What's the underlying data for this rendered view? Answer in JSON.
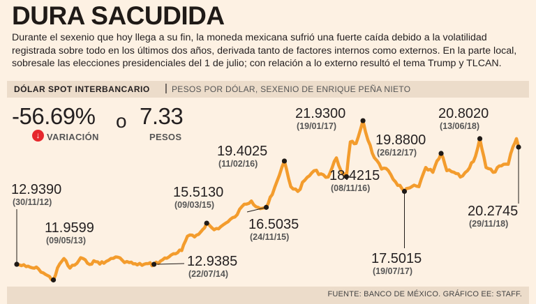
{
  "header": {
    "title": "DURA SACUDIDA",
    "intro": "Durante el sexenio que hoy llega a su fin, la moneda mexicana sufrió una fuerte caída debido a la volatilidad registrada sobre todo en los últimos dos años, derivada tanto de factores internos como externos. En la parte local, sobresale las elecciones presidenciales del 1 de julio; con relación a lo externo resultó el tema Trump y TLCAN."
  },
  "subtitle_bar": {
    "label": "DÓLAR SPOT INTERBANCARIO",
    "separator": "|",
    "detail": "PESOS POR DÓLAR, SEXENIO DE ENRIQUE PEÑA NIETO"
  },
  "stats": {
    "variation_value": "-56.69%",
    "variation_label": "VARIACIÓN",
    "connector": "o",
    "pesos_value": "7.33",
    "pesos_label": "PESOS",
    "down_icon": "↓"
  },
  "footer": {
    "source": "FUENTE: BANCO DE MÉXICO. GRÁFICO EE: STAFF."
  },
  "colors": {
    "line": "#f39c2d",
    "background": "#fdf1e3",
    "bar": "#ecdcca",
    "down_badge": "#e6282d"
  },
  "chart_data": {
    "type": "line",
    "title": "DÓLAR SPOT INTERBANCARIO",
    "ylabel": "PESOS POR DÓLAR",
    "x_range": [
      "2012-11-30",
      "2018-11-29"
    ],
    "y_range": [
      11.5,
      22.5
    ],
    "grid": false,
    "points": [
      {
        "x": "2012-11-30",
        "y": 12.939
      },
      {
        "x": "2013-01-10",
        "y": 12.79
      },
      {
        "x": "2013-02-05",
        "y": 12.72
      },
      {
        "x": "2013-03-05",
        "y": 12.65
      },
      {
        "x": "2013-04-05",
        "y": 12.3
      },
      {
        "x": "2013-05-09",
        "y": 11.9599
      },
      {
        "x": "2013-06-05",
        "y": 12.95
      },
      {
        "x": "2013-06-24",
        "y": 13.3
      },
      {
        "x": "2013-07-20",
        "y": 12.7
      },
      {
        "x": "2013-08-20",
        "y": 13.0
      },
      {
        "x": "2013-09-05",
        "y": 13.35
      },
      {
        "x": "2013-10-05",
        "y": 13.0
      },
      {
        "x": "2013-11-10",
        "y": 13.1
      },
      {
        "x": "2013-12-15",
        "y": 13.0
      },
      {
        "x": "2014-01-15",
        "y": 13.3
      },
      {
        "x": "2014-02-05",
        "y": 13.4
      },
      {
        "x": "2014-03-05",
        "y": 13.2
      },
      {
        "x": "2014-04-05",
        "y": 13.05
      },
      {
        "x": "2014-05-10",
        "y": 12.9
      },
      {
        "x": "2014-06-10",
        "y": 12.95
      },
      {
        "x": "2014-07-22",
        "y": 12.9385
      },
      {
        "x": "2014-08-20",
        "y": 13.15
      },
      {
        "x": "2014-09-25",
        "y": 13.4
      },
      {
        "x": "2014-10-15",
        "y": 13.6
      },
      {
        "x": "2014-11-20",
        "y": 13.8
      },
      {
        "x": "2014-12-15",
        "y": 14.7
      },
      {
        "x": "2015-01-15",
        "y": 14.65
      },
      {
        "x": "2015-02-10",
        "y": 14.95
      },
      {
        "x": "2015-03-09",
        "y": 15.513
      },
      {
        "x": "2015-04-10",
        "y": 15.1
      },
      {
        "x": "2015-05-10",
        "y": 15.3
      },
      {
        "x": "2015-06-10",
        "y": 15.6
      },
      {
        "x": "2015-07-10",
        "y": 15.9
      },
      {
        "x": "2015-08-20",
        "y": 16.7
      },
      {
        "x": "2015-09-20",
        "y": 16.9
      },
      {
        "x": "2015-10-20",
        "y": 16.5
      },
      {
        "x": "2015-11-24",
        "y": 16.5035
      },
      {
        "x": "2015-12-20",
        "y": 17.3
      },
      {
        "x": "2016-01-20",
        "y": 18.5
      },
      {
        "x": "2016-02-11",
        "y": 19.4025
      },
      {
        "x": "2016-03-10",
        "y": 17.8
      },
      {
        "x": "2016-04-10",
        "y": 17.5
      },
      {
        "x": "2016-05-10",
        "y": 18.2
      },
      {
        "x": "2016-06-20",
        "y": 18.8
      },
      {
        "x": "2016-07-20",
        "y": 18.6
      },
      {
        "x": "2016-08-20",
        "y": 18.4
      },
      {
        "x": "2016-09-25",
        "y": 19.6
      },
      {
        "x": "2016-10-15",
        "y": 18.8
      },
      {
        "x": "2016-11-08",
        "y": 18.4215
      },
      {
        "x": "2016-11-25",
        "y": 20.6
      },
      {
        "x": "2016-12-20",
        "y": 20.5
      },
      {
        "x": "2017-01-19",
        "y": 21.93
      },
      {
        "x": "2017-02-10",
        "y": 20.7
      },
      {
        "x": "2017-03-10",
        "y": 19.6
      },
      {
        "x": "2017-04-10",
        "y": 18.9
      },
      {
        "x": "2017-05-10",
        "y": 18.8
      },
      {
        "x": "2017-06-10",
        "y": 18.1
      },
      {
        "x": "2017-07-19",
        "y": 17.5015
      },
      {
        "x": "2017-08-20",
        "y": 17.8
      },
      {
        "x": "2017-09-20",
        "y": 17.8
      },
      {
        "x": "2017-10-20",
        "y": 19.0
      },
      {
        "x": "2017-11-20",
        "y": 18.7
      },
      {
        "x": "2017-12-26",
        "y": 19.88
      },
      {
        "x": "2018-01-20",
        "y": 18.8
      },
      {
        "x": "2018-02-20",
        "y": 18.7
      },
      {
        "x": "2018-03-20",
        "y": 18.4
      },
      {
        "x": "2018-04-20",
        "y": 18.8
      },
      {
        "x": "2018-05-25",
        "y": 19.7
      },
      {
        "x": "2018-06-13",
        "y": 20.802
      },
      {
        "x": "2018-07-10",
        "y": 19.0
      },
      {
        "x": "2018-08-10",
        "y": 18.7
      },
      {
        "x": "2018-09-15",
        "y": 19.1
      },
      {
        "x": "2018-10-15",
        "y": 19.2
      },
      {
        "x": "2018-11-05",
        "y": 20.3
      },
      {
        "x": "2018-11-20",
        "y": 20.8
      },
      {
        "x": "2018-11-29",
        "y": 20.2745
      }
    ],
    "annotations": [
      {
        "date_label": "(30/11/12)",
        "value": "12.9390",
        "x": "2012-11-30",
        "y": 12.939,
        "pos": "above"
      },
      {
        "date_label": "(09/05/13)",
        "value": "11.9599",
        "x": "2013-05-09",
        "y": 11.9599,
        "pos": "above"
      },
      {
        "date_label": "(22/07/14)",
        "value": "12.9385",
        "x": "2014-07-22",
        "y": 12.9385,
        "pos": "below"
      },
      {
        "date_label": "(09/03/15)",
        "value": "15.5130",
        "x": "2015-03-09",
        "y": 15.513,
        "pos": "above"
      },
      {
        "date_label": "(24/11/15)",
        "value": "16.5035",
        "x": "2015-11-24",
        "y": 16.5035,
        "pos": "below"
      },
      {
        "date_label": "(11/02/16)",
        "value": "19.4025",
        "x": "2016-02-11",
        "y": 19.4025,
        "pos": "above"
      },
      {
        "date_label": "(08/11/16)",
        "value": "18.4215",
        "x": "2016-11-08",
        "y": 18.4215,
        "pos": "below"
      },
      {
        "date_label": "(19/01/17)",
        "value": "21.9300",
        "x": "2017-01-19",
        "y": 21.93,
        "pos": "above"
      },
      {
        "date_label": "(19/07/17)",
        "value": "17.5015",
        "x": "2017-07-19",
        "y": 17.5015,
        "pos": "below"
      },
      {
        "date_label": "(26/12/17)",
        "value": "19.8800",
        "x": "2017-12-26",
        "y": 19.88,
        "pos": "above"
      },
      {
        "date_label": "(13/06/18)",
        "value": "20.8020",
        "x": "2018-06-13",
        "y": 20.802,
        "pos": "above"
      },
      {
        "date_label": "(29/11/18)",
        "value": "20.2745",
        "x": "2018-11-29",
        "y": 20.2745,
        "pos": "below"
      }
    ]
  }
}
